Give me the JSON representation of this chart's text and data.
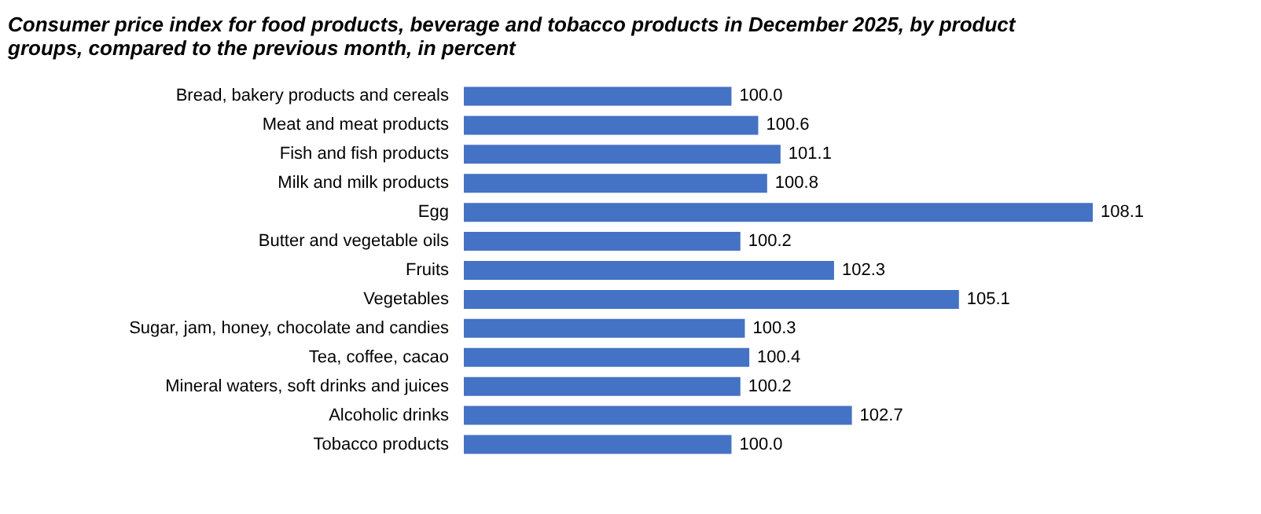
{
  "chart_data": {
    "type": "bar",
    "orientation": "horizontal",
    "title": [
      "Consumer price index for food products, beverage and tobacco products in December 2025, by product",
      "groups, compared to the previous month, in percent"
    ],
    "categories": [
      "Bread, bakery products and cereals",
      "Meat and meat products",
      "Fish and fish products",
      "Milk and milk products",
      "Egg",
      "Butter and vegetable oils",
      "Fruits",
      "Vegetables",
      "Sugar, jam, honey, chocolate and candies",
      "Tea, coffee, cacao",
      "Mineral waters, soft drinks and juices",
      "Alcoholic drinks",
      "Tobacco products"
    ],
    "values": [
      100.0,
      100.6,
      101.1,
      100.8,
      108.1,
      100.2,
      102.3,
      105.1,
      100.3,
      100.4,
      100.2,
      102.7,
      100.0
    ],
    "value_labels": [
      "100.0",
      "100.6",
      "101.1",
      "100.8",
      "108.1",
      "100.2",
      "102.3",
      "105.1",
      "100.3",
      "100.4",
      "100.2",
      "102.7",
      "100.0"
    ],
    "color": "#4472c4",
    "xlim": [
      94,
      108.1
    ],
    "tick_labels": "y",
    "grid": false
  }
}
